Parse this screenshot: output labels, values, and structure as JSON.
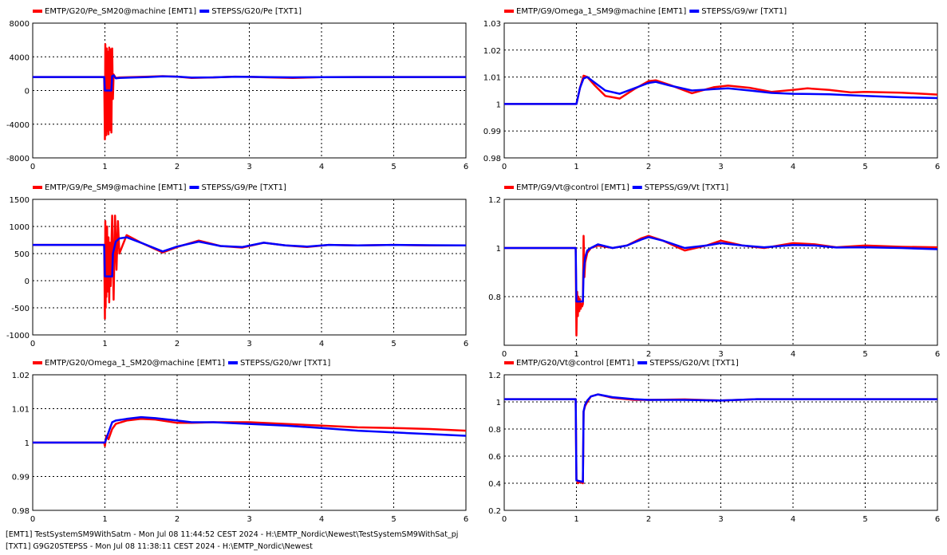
{
  "colors": {
    "emt": "#ff0000",
    "stepss": "#0000ff",
    "grid": "#000000"
  },
  "footer": {
    "line1": "[EMT1] TestSystemSM9WithSatm - Mon Jul 08 11:44:52 CEST 2024 - H:\\EMTP_Nordic\\Newest\\TestSystemSM9WithSat_pj",
    "line2": "[TXT1] G9G20STEPSS - Mon Jul 08 11:38:11 CEST 2024 - H:\\EMTP_Nordic\\Newest"
  },
  "chart_data": [
    {
      "type": "line",
      "legend_position": "top-left",
      "grid": true,
      "xlim": [
        0,
        6
      ],
      "ylim": [
        -8000,
        8000
      ],
      "xticks": [
        "0",
        "1",
        "2",
        "3",
        "4",
        "5",
        "6"
      ],
      "yticks": [
        "-8000",
        "-4000",
        "0",
        "4000",
        "8000"
      ],
      "series": [
        {
          "name": "EMTP/G20/Pe_SM20@machine [EMT1]",
          "color": "#ff0000",
          "x": [
            0,
            0.99,
            1.0,
            1.005,
            1.01,
            1.015,
            1.02,
            1.025,
            1.03,
            1.04,
            1.05,
            1.06,
            1.07,
            1.08,
            1.09,
            1.1,
            1.11,
            1.12,
            1.15,
            1.2,
            1.4,
            1.6,
            1.8,
            2.0,
            2.2,
            2.5,
            2.8,
            3.0,
            3.3,
            3.6,
            4.0,
            4.5,
            5.0,
            5.5,
            6.0
          ],
          "y": [
            1600,
            1600,
            -5800,
            5500,
            -5000,
            4800,
            -5300,
            5000,
            -4800,
            4600,
            -5200,
            5100,
            -4700,
            4900,
            -5000,
            5000,
            -1000,
            1900,
            1500,
            1550,
            1600,
            1650,
            1700,
            1650,
            1500,
            1550,
            1650,
            1620,
            1550,
            1500,
            1580,
            1600,
            1600,
            1600,
            1600
          ]
        },
        {
          "name": "STEPSS/G20/Pe [TXT1]",
          "color": "#0000ff",
          "x": [
            0,
            0.99,
            1.0,
            1.01,
            1.09,
            1.1,
            1.12,
            1.15,
            1.2,
            1.4,
            1.6,
            1.8,
            2.0,
            2.2,
            2.5,
            2.8,
            3.0,
            3.3,
            3.6,
            4.0,
            4.5,
            5.0,
            5.5,
            6.0
          ],
          "y": [
            1600,
            1600,
            0,
            0,
            0,
            1700,
            1800,
            1450,
            1500,
            1550,
            1600,
            1680,
            1650,
            1540,
            1560,
            1640,
            1620,
            1580,
            1560,
            1590,
            1600,
            1600,
            1600,
            1600
          ]
        }
      ]
    },
    {
      "type": "line",
      "legend_position": "top-left",
      "grid": true,
      "xlim": [
        0,
        6
      ],
      "ylim": [
        0.98,
        1.03
      ],
      "xticks": [
        "0",
        "1",
        "2",
        "3",
        "4",
        "5",
        "6"
      ],
      "yticks": [
        "0.98",
        "0.99",
        "1",
        "1.01",
        "1.02",
        "1.03"
      ],
      "series": [
        {
          "name": "EMTP/G9/Omega_1_SM9@machine [EMT1]",
          "color": "#ff0000",
          "x": [
            0,
            1.0,
            1.05,
            1.1,
            1.15,
            1.25,
            1.4,
            1.6,
            1.8,
            2.0,
            2.1,
            2.3,
            2.6,
            2.9,
            3.1,
            3.4,
            3.7,
            4.0,
            4.2,
            4.5,
            4.8,
            5.0,
            5.5,
            6.0
          ],
          "y": [
            1,
            1,
            1.006,
            1.0105,
            1.01,
            1.007,
            1.003,
            1.002,
            1.0055,
            1.0085,
            1.0088,
            1.007,
            1.004,
            1.0062,
            1.0068,
            1.006,
            1.0045,
            1.0052,
            1.0058,
            1.0052,
            1.0043,
            1.0045,
            1.0042,
            1.0035
          ]
        },
        {
          "name": "STEPSS/G9/wr [TXT1]",
          "color": "#0000ff",
          "x": [
            0,
            1.0,
            1.05,
            1.1,
            1.15,
            1.25,
            1.4,
            1.6,
            1.8,
            2.0,
            2.1,
            2.3,
            2.6,
            2.9,
            3.1,
            3.4,
            3.7,
            4.0,
            4.5,
            5.0,
            5.5,
            6.0
          ],
          "y": [
            1,
            1,
            1.006,
            1.0095,
            1.01,
            1.008,
            1.005,
            1.0038,
            1.0058,
            1.0078,
            1.0082,
            1.0068,
            1.005,
            1.0055,
            1.0058,
            1.005,
            1.0041,
            1.0038,
            1.0036,
            1.003,
            1.0025,
            1.0022
          ]
        }
      ]
    },
    {
      "type": "line",
      "legend_position": "top-left",
      "grid": true,
      "xlim": [
        0,
        6
      ],
      "ylim": [
        -1000,
        1500
      ],
      "xticks": [
        "0",
        "1",
        "2",
        "3",
        "4",
        "5",
        "6"
      ],
      "yticks": [
        "-1000",
        "-500",
        "0",
        "500",
        "1000",
        "1500"
      ],
      "series": [
        {
          "name": "EMTP/G9/Pe_SM9@machine [EMT1]",
          "color": "#ff0000",
          "x": [
            0,
            0.99,
            1.0,
            1.005,
            1.01,
            1.015,
            1.02,
            1.03,
            1.04,
            1.05,
            1.06,
            1.07,
            1.08,
            1.09,
            1.1,
            1.12,
            1.14,
            1.16,
            1.18,
            1.2,
            1.3,
            1.5,
            1.8,
            2.0,
            2.3,
            2.6,
            2.9,
            3.2,
            3.5,
            3.8,
            4.1,
            4.5,
            5.0,
            5.5,
            6.0
          ],
          "y": [
            660,
            660,
            -700,
            1100,
            -500,
            900,
            -300,
            1000,
            -200,
            800,
            -400,
            700,
            -100,
            600,
            1200,
            -350,
            1200,
            200,
            1100,
            500,
            840,
            700,
            520,
            620,
            740,
            640,
            610,
            700,
            650,
            620,
            660,
            650,
            660,
            650,
            650
          ]
        },
        {
          "name": "STEPSS/G9/Pe [TXT1]",
          "color": "#0000ff",
          "x": [
            0,
            0.99,
            1.0,
            1.01,
            1.1,
            1.11,
            1.15,
            1.2,
            1.3,
            1.5,
            1.8,
            2.0,
            2.3,
            2.6,
            2.9,
            3.2,
            3.5,
            3.8,
            4.1,
            4.5,
            5.0,
            5.5,
            6.0
          ],
          "y": [
            660,
            660,
            80,
            80,
            80,
            500,
            720,
            780,
            800,
            700,
            540,
            630,
            720,
            640,
            620,
            700,
            650,
            630,
            660,
            650,
            660,
            655,
            650
          ]
        }
      ]
    },
    {
      "type": "line",
      "legend_position": "top-left",
      "grid": true,
      "xlim": [
        0,
        6
      ],
      "ylim": [
        0.6,
        1.2
      ],
      "xticks": [
        "0",
        "1",
        "2",
        "3",
        "4",
        "5",
        "6"
      ],
      "yticks": [
        "0.8",
        "1",
        "1.2"
      ],
      "series": [
        {
          "name": "EMTP/G9/Vt@control [EMT1]",
          "color": "#ff0000",
          "x": [
            0,
            0.99,
            1.0,
            1.01,
            1.02,
            1.03,
            1.04,
            1.05,
            1.06,
            1.07,
            1.08,
            1.09,
            1.1,
            1.11,
            1.12,
            1.15,
            1.2,
            1.3,
            1.5,
            1.7,
            1.9,
            2.0,
            2.2,
            2.5,
            2.8,
            3.0,
            3.3,
            3.6,
            4.0,
            4.3,
            4.6,
            5.0,
            5.5,
            6.0
          ],
          "y": [
            1,
            1,
            0.64,
            0.82,
            0.72,
            0.8,
            0.74,
            0.79,
            0.75,
            0.77,
            0.76,
            0.77,
            1.05,
            0.88,
            0.94,
            0.98,
            1.0,
            1.01,
            1.0,
            1.01,
            1.04,
            1.05,
            1.03,
            0.99,
            1.01,
            1.03,
            1.01,
            1.0,
            1.02,
            1.015,
            1.003,
            1.01,
            1.005,
            1.003
          ]
        },
        {
          "name": "STEPSS/G9/Vt [TXT1]",
          "color": "#0000ff",
          "x": [
            0,
            0.99,
            1.0,
            1.01,
            1.09,
            1.1,
            1.12,
            1.15,
            1.2,
            1.3,
            1.5,
            1.7,
            1.9,
            2.0,
            2.2,
            2.5,
            2.8,
            3.0,
            3.3,
            3.6,
            4.0,
            4.3,
            4.6,
            5.0,
            5.5,
            6.0
          ],
          "y": [
            1,
            1,
            0.78,
            0.78,
            0.78,
            0.9,
            0.96,
            0.99,
            1.0,
            1.015,
            1.0,
            1.01,
            1.035,
            1.045,
            1.03,
            1.0,
            1.01,
            1.02,
            1.01,
            1.003,
            1.012,
            1.01,
            1.002,
            1.003,
            1.0,
            0.995
          ]
        }
      ]
    },
    {
      "type": "line",
      "legend_position": "top-left",
      "grid": true,
      "xlim": [
        0,
        6
      ],
      "ylim": [
        0.98,
        1.02
      ],
      "xticks": [
        "0",
        "1",
        "2",
        "3",
        "4",
        "5",
        "6"
      ],
      "yticks": [
        "0.98",
        "0.99",
        "1",
        "1.01",
        "1.02"
      ],
      "series": [
        {
          "name": "EMTP/G20/Omega_1_SM20@machine [EMT1]",
          "color": "#ff0000",
          "x": [
            0,
            0.99,
            1.0,
            1.02,
            1.05,
            1.1,
            1.15,
            1.3,
            1.5,
            1.7,
            2.0,
            2.2,
            2.5,
            3.0,
            3.5,
            4.0,
            4.5,
            5.0,
            5.5,
            6.0
          ],
          "y": [
            1,
            1,
            0.999,
            1.002,
            1.001,
            1.004,
            1.0055,
            1.0065,
            1.007,
            1.0068,
            1.0058,
            1.0058,
            1.006,
            1.006,
            1.0055,
            1.005,
            1.0045,
            1.0043,
            1.004,
            1.0035
          ]
        },
        {
          "name": "STEPSS/G20/wr [TXT1]",
          "color": "#0000ff",
          "x": [
            0,
            0.99,
            1.0,
            1.05,
            1.1,
            1.15,
            1.3,
            1.5,
            1.7,
            2.0,
            2.2,
            2.5,
            3.0,
            3.5,
            4.0,
            4.5,
            5.0,
            5.5,
            6.0
          ],
          "y": [
            1,
            1,
            1.0,
            1.003,
            1.006,
            1.0065,
            1.007,
            1.0075,
            1.0072,
            1.0065,
            1.006,
            1.006,
            1.0055,
            1.005,
            1.0043,
            1.0035,
            1.003,
            1.0025,
            1.002
          ]
        }
      ]
    },
    {
      "type": "line",
      "legend_position": "top-left",
      "grid": true,
      "xlim": [
        0,
        6
      ],
      "ylim": [
        0.2,
        1.2
      ],
      "xticks": [
        "0",
        "1",
        "2",
        "3",
        "4",
        "5",
        "6"
      ],
      "yticks": [
        "0.2",
        "0.4",
        "0.6",
        "0.8",
        "1",
        "1.2"
      ],
      "series": [
        {
          "name": "EMTP/G20/Vt@control [EMT1]",
          "color": "#ff0000",
          "x": [
            0,
            0.99,
            1.0,
            1.01,
            1.02,
            1.05,
            1.09,
            1.1,
            1.12,
            1.15,
            1.2,
            1.3,
            1.5,
            1.8,
            2.0,
            2.5,
            3.0,
            3.5,
            4.0,
            5.0,
            6.0
          ],
          "y": [
            1.02,
            1.02,
            0.43,
            0.42,
            0.4,
            0.41,
            0.4,
            0.93,
            0.97,
            1.0,
            1.04,
            1.055,
            1.03,
            1.015,
            1.015,
            1.018,
            1.01,
            1.02,
            1.02,
            1.02,
            1.02
          ]
        },
        {
          "name": "STEPSS/G20/Vt [TXT1]",
          "color": "#0000ff",
          "x": [
            0,
            0.99,
            1.0,
            1.01,
            1.09,
            1.1,
            1.12,
            1.15,
            1.2,
            1.3,
            1.5,
            1.8,
            2.0,
            2.5,
            3.0,
            3.5,
            4.0,
            5.0,
            6.0
          ],
          "y": [
            1.02,
            1.02,
            0.42,
            0.42,
            0.41,
            0.93,
            0.98,
            1.01,
            1.04,
            1.055,
            1.035,
            1.02,
            1.015,
            1.015,
            1.01,
            1.02,
            1.02,
            1.02,
            1.02
          ]
        }
      ]
    }
  ]
}
